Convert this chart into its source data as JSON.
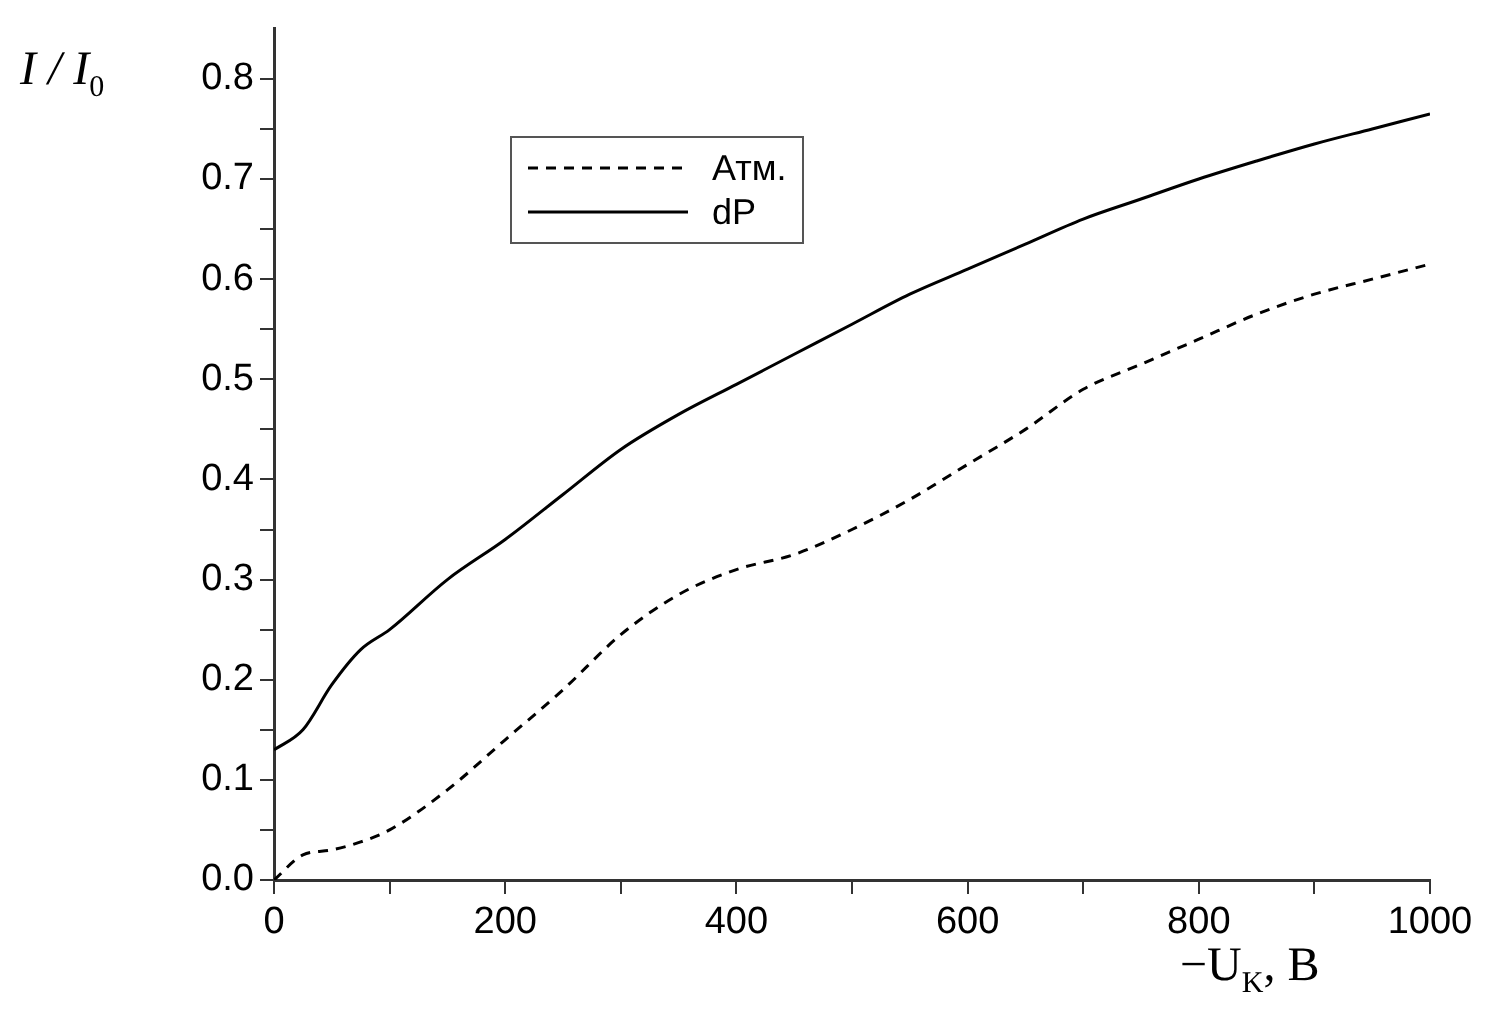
{
  "chart_data": {
    "type": "line",
    "xlabel": "−U$_{K}$,  B",
    "ylabel": "I / I$_{0}$",
    "xlim": [
      0,
      1000
    ],
    "xticks": [
      0,
      {
        "value": 100,
        "label": null
      },
      200,
      {
        "value": 300,
        "label": null
      },
      400,
      {
        "value": 500,
        "label": null
      },
      600,
      {
        "value": 700,
        "label": null
      },
      800,
      {
        "value": 900,
        "label": null
      },
      1000
    ],
    "ylim": [
      0,
      0.85
    ],
    "yticks": [
      {
        "value": 0,
        "label": "0.0"
      },
      {
        "value": 0.05,
        "label": null
      },
      0.1,
      {
        "value": 0.15,
        "label": null
      },
      0.2,
      {
        "value": 0.25,
        "label": null
      },
      0.3,
      {
        "value": 0.35,
        "label": null
      },
      0.4,
      {
        "value": 0.45,
        "label": null
      },
      0.5,
      {
        "value": 0.55,
        "label": null
      },
      0.6,
      {
        "value": 0.65,
        "label": null
      },
      0.7,
      {
        "value": 0.75,
        "label": null
      },
      0.8
    ],
    "grid": false,
    "legend": "top left",
    "marker": "none",
    "series": [
      {
        "name": "Атм.",
        "color": "#000000",
        "line_style": "dashed",
        "x": [
          0,
          25,
          50,
          75,
          100,
          150,
          200,
          250,
          300,
          350,
          400,
          450,
          500,
          550,
          600,
          650,
          700,
          750,
          800,
          850,
          900,
          950,
          1000
        ],
        "values": [
          0.0,
          0.025,
          0.03,
          0.038,
          0.05,
          0.09,
          0.14,
          0.19,
          0.245,
          0.285,
          0.31,
          0.325,
          0.35,
          0.38,
          0.415,
          0.45,
          0.49,
          0.515,
          0.54,
          0.565,
          0.585,
          0.6,
          0.615
        ]
      },
      {
        "name": "dP",
        "color": "#000000",
        "line_style": "solid",
        "x": [
          0,
          25,
          50,
          75,
          100,
          150,
          200,
          250,
          300,
          350,
          400,
          450,
          500,
          550,
          600,
          650,
          700,
          750,
          800,
          850,
          900,
          950,
          1000
        ],
        "values": [
          0.13,
          0.15,
          0.195,
          0.23,
          0.25,
          0.3,
          0.34,
          0.385,
          0.43,
          0.465,
          0.495,
          0.525,
          0.555,
          0.585,
          0.61,
          0.635,
          0.66,
          0.68,
          0.7,
          0.718,
          0.735,
          0.75,
          0.765
        ]
      }
    ]
  }
}
